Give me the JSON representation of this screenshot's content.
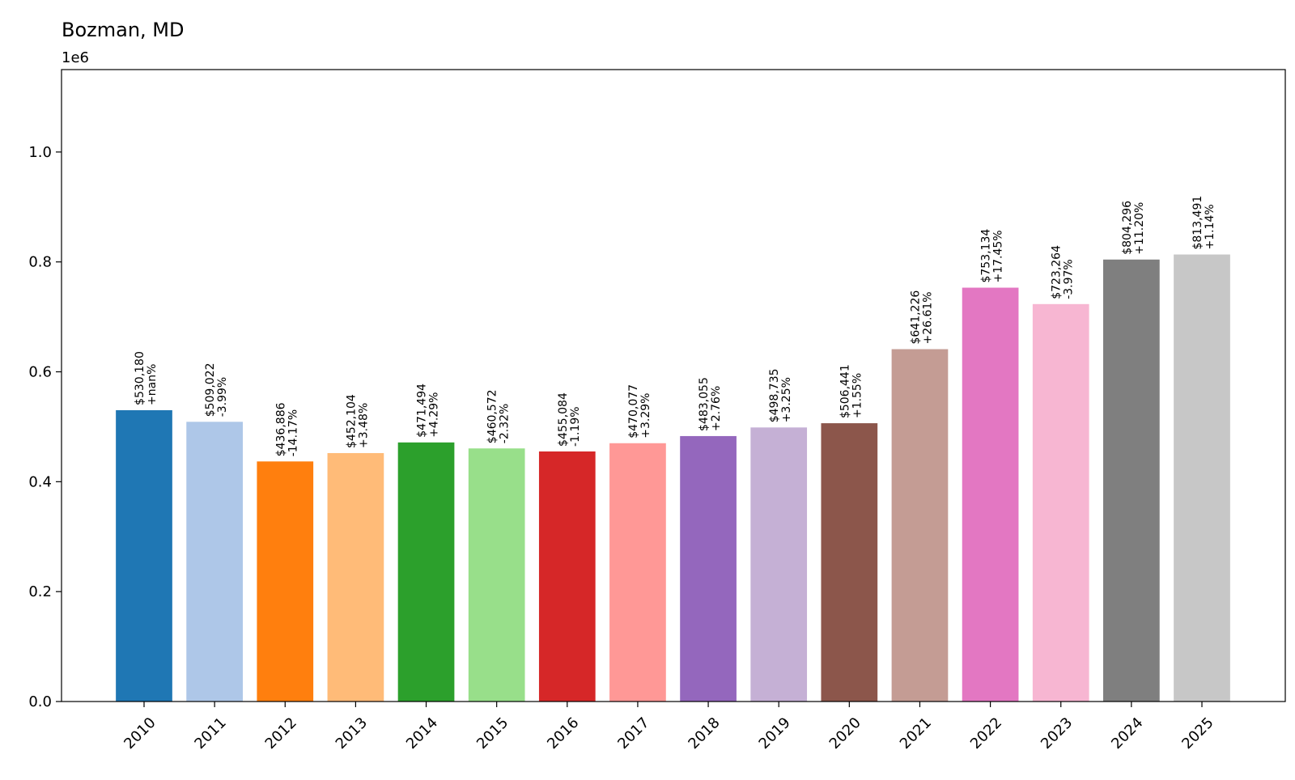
{
  "chart_data": {
    "type": "bar",
    "title": "Bozman, MD",
    "offset_label": "1e6",
    "xlabel": "",
    "ylabel": "",
    "ylim": [
      0,
      1150000
    ],
    "yticks": [
      0.0,
      0.2,
      0.4,
      0.6,
      0.8,
      1.0
    ],
    "ytick_labels": [
      "0.0",
      "0.2",
      "0.4",
      "0.6",
      "0.8",
      "1.0"
    ],
    "grid": false,
    "categories": [
      "2010",
      "2011",
      "2012",
      "2013",
      "2014",
      "2015",
      "2016",
      "2017",
      "2018",
      "2019",
      "2020",
      "2021",
      "2022",
      "2023",
      "2024",
      "2025"
    ],
    "values": [
      530180,
      509022,
      436886,
      452104,
      471494,
      460572,
      455084,
      470077,
      483055,
      498735,
      506441,
      641226,
      753134,
      723264,
      804296,
      813491
    ],
    "value_labels": [
      "$530,180",
      "$509,022",
      "$436,886",
      "$452,104",
      "$471,494",
      "$460,572",
      "$455,084",
      "$470,077",
      "$483,055",
      "$498,735",
      "$506,441",
      "$641,226",
      "$753,134",
      "$723,264",
      "$804,296",
      "$813,491"
    ],
    "change_labels": [
      "+nan%",
      "-3.99%",
      "-14.17%",
      "+3.48%",
      "+4.29%",
      "-2.32%",
      "-1.19%",
      "+3.29%",
      "+2.76%",
      "+3.25%",
      "+1.55%",
      "+26.61%",
      "+17.45%",
      "-3.97%",
      "+11.20%",
      "+1.14%"
    ],
    "colors": [
      "#1f77b4",
      "#aec7e8",
      "#ff7f0e",
      "#ffbb78",
      "#2ca02c",
      "#98df8a",
      "#d62728",
      "#ff9896",
      "#9467bd",
      "#c5b0d5",
      "#8c564b",
      "#c49c94",
      "#e377c2",
      "#f7b6d2",
      "#7f7f7f",
      "#c7c7c7"
    ]
  }
}
